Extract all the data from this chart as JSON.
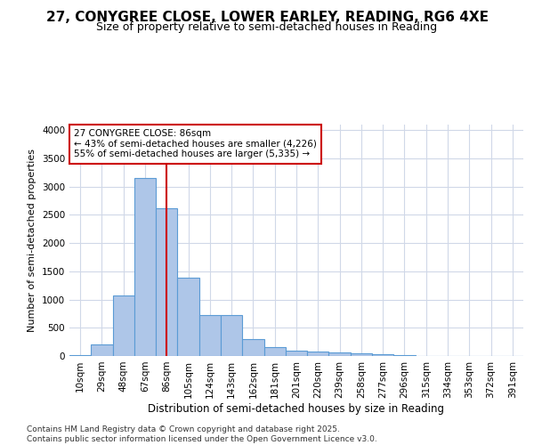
{
  "title_line1": "27, CONYGREE CLOSE, LOWER EARLEY, READING, RG6 4XE",
  "title_line2": "Size of property relative to semi-detached houses in Reading",
  "xlabel": "Distribution of semi-detached houses by size in Reading",
  "ylabel": "Number of semi-detached properties",
  "footnote": "Contains HM Land Registry data © Crown copyright and database right 2025.\nContains public sector information licensed under the Open Government Licence v3.0.",
  "annotation_title": "27 CONYGREE CLOSE: 86sqm",
  "annotation_line2": "← 43% of semi-detached houses are smaller (4,226)",
  "annotation_line3": "55% of semi-detached houses are larger (5,335) →",
  "property_size_idx": 4,
  "bar_color": "#aec6e8",
  "bar_edge_color": "#5b9bd5",
  "vline_color": "#cc0000",
  "annotation_box_color": "#cc0000",
  "background_color": "#ffffff",
  "grid_color": "#d0d8e8",
  "categories": [
    "10sqm",
    "29sqm",
    "48sqm",
    "67sqm",
    "86sqm",
    "105sqm",
    "124sqm",
    "143sqm",
    "162sqm",
    "181sqm",
    "201sqm",
    "220sqm",
    "239sqm",
    "258sqm",
    "277sqm",
    "296sqm",
    "315sqm",
    "334sqm",
    "353sqm",
    "372sqm",
    "391sqm"
  ],
  "values": [
    20,
    200,
    1080,
    3150,
    2620,
    1380,
    730,
    730,
    300,
    155,
    100,
    85,
    60,
    50,
    30,
    10,
    5,
    5,
    2,
    1,
    0
  ],
  "ylim": [
    0,
    4100
  ],
  "yticks": [
    0,
    500,
    1000,
    1500,
    2000,
    2500,
    3000,
    3500,
    4000
  ],
  "title1_fontsize": 11,
  "title2_fontsize": 9,
  "ylabel_fontsize": 8,
  "xlabel_fontsize": 8.5,
  "tick_fontsize": 7.5,
  "footnote_fontsize": 6.5
}
